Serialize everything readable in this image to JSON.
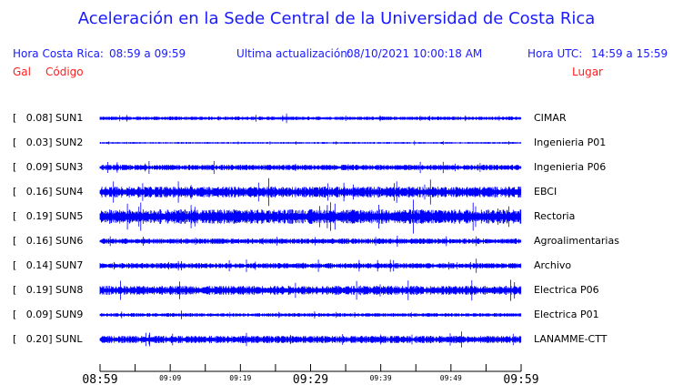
{
  "title": "Aceleración en la Sede Central de la Universidad de Costa Rica",
  "header": {
    "cr_label": "Hora Costa Rica:",
    "cr_range": "08:59 a 09:59",
    "update_label": "Ultima actualización:",
    "update_value": "08/10/2021 10:00:18 AM",
    "utc_label": "Hora UTC:",
    "utc_range": "14:59 a 15:59",
    "gal_label": "Gal",
    "code_label": "Código",
    "place_label": "Lugar"
  },
  "colors": {
    "trace": "#0000ff",
    "header": "#1a1aff",
    "labels": "#ff2020"
  },
  "chart_data": {
    "type": "line",
    "title": "Aceleración en la Sede Central de la Universidad de Costa Rica",
    "x_ticks_major": [
      "08:59",
      "09:29",
      "09:59"
    ],
    "x_ticks_minor": [
      "09:09",
      "09:19",
      "09:39",
      "09:49"
    ],
    "x_range": [
      "08:59",
      "09:59"
    ],
    "tick_interval_minutes": 5,
    "series": [
      {
        "code": "SUN1",
        "gal": "0.08",
        "text": "[   0.08] SUN1",
        "place": "CIMAR"
      },
      {
        "code": "SUN2",
        "gal": "0.03",
        "text": "[   0.03] SUN2",
        "place": "Ingenieria P01"
      },
      {
        "code": "SUN3",
        "gal": "0.09",
        "text": "[   0.09] SUN3",
        "place": "Ingenieria P06"
      },
      {
        "code": "SUN4",
        "gal": "0.16",
        "text": "[   0.16] SUN4",
        "place": "EBCI"
      },
      {
        "code": "SUN5",
        "gal": "0.19",
        "text": "[   0.19] SUN5",
        "place": "Rectoria"
      },
      {
        "code": "SUN6",
        "gal": "0.16",
        "text": "[   0.16] SUN6",
        "place": "Agroalimentarias"
      },
      {
        "code": "SUN7",
        "gal": "0.14",
        "text": "[   0.14] SUN7",
        "place": "Archivo"
      },
      {
        "code": "SUN8",
        "gal": "0.19",
        "text": "[   0.19] SUN8",
        "place": "Electrica P06"
      },
      {
        "code": "SUN9",
        "gal": "0.09",
        "text": "[   0.09] SUN9",
        "place": "Electrica P01"
      },
      {
        "code": "SUNL",
        "gal": "0.20",
        "text": "[   0.20] SUNL",
        "place": "LANAMME-CTT"
      }
    ]
  }
}
